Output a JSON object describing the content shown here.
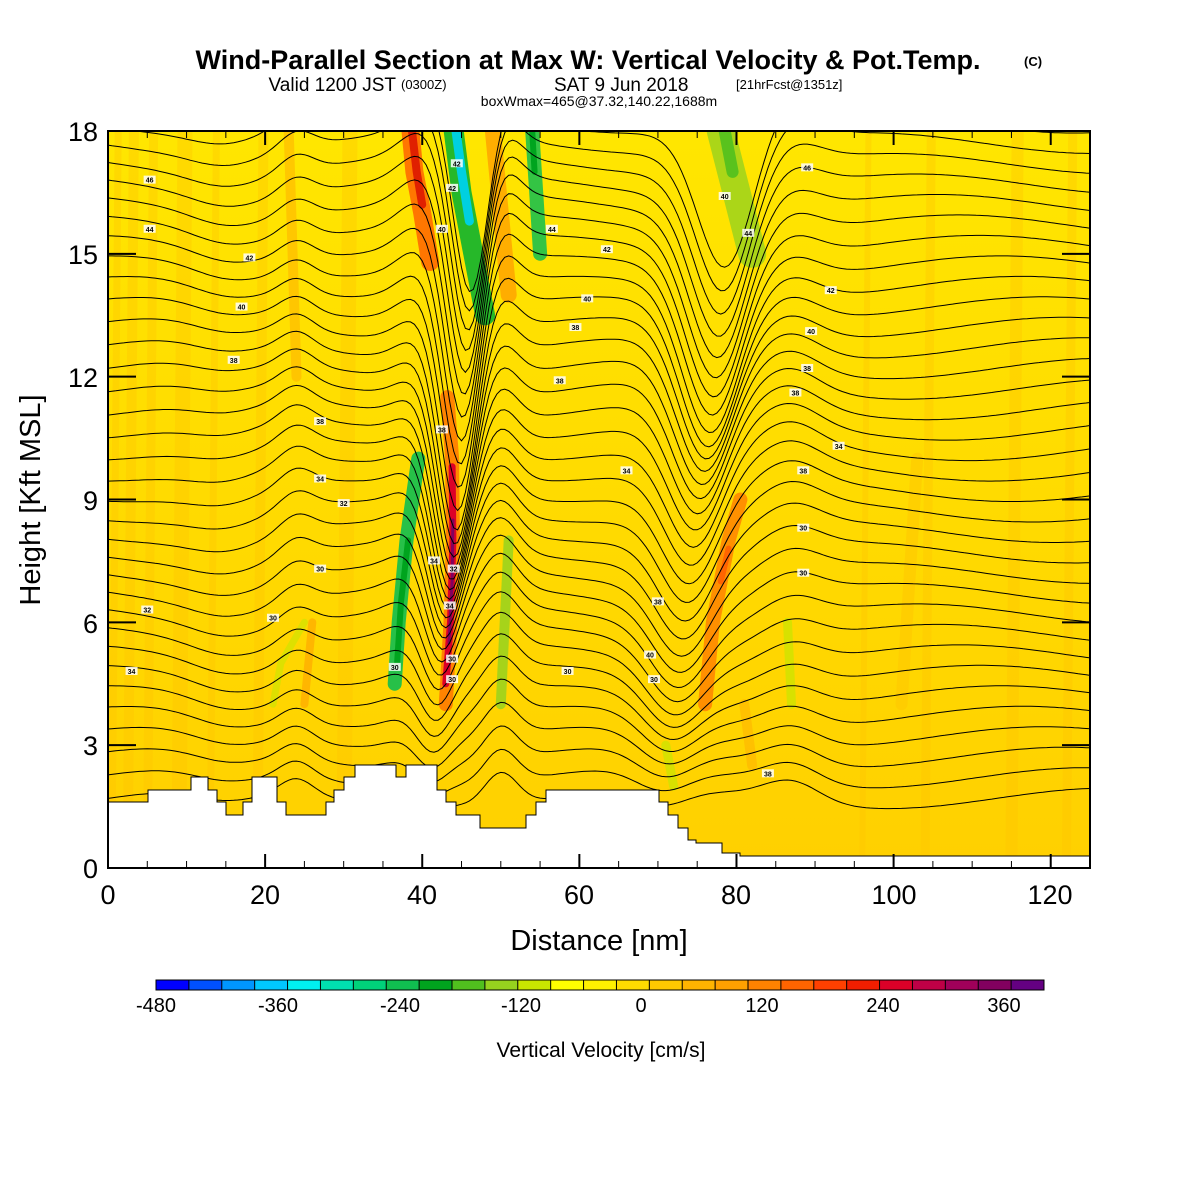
{
  "title": {
    "main": "Wind-Parallel Section at Max W: Vertical Velocity & Pot.Temp.",
    "main_sup": "(C)",
    "valid_prefix": "Valid 1200 JST",
    "valid_utc": "(0300Z)",
    "valid_date": "SAT 9 Jun 2018",
    "valid_fcst": "[21hrFcst@1351z]",
    "box_info": "boxWmax=465@37.32,140.22,1688m"
  },
  "chart_data": {
    "type": "heatmap",
    "xlabel": "Distance [nm]",
    "ylabel": "Height [Kft MSL]",
    "xlim": [
      0,
      125
    ],
    "ylim": [
      0,
      18
    ],
    "x_ticks": [
      "0",
      "20",
      "40",
      "60",
      "80",
      "100",
      "120"
    ],
    "y_ticks": [
      "0",
      "3",
      "6",
      "9",
      "12",
      "15",
      "18"
    ],
    "colorbar": {
      "label": "Vertical Velocity [cm/s]",
      "range": [
        -480,
        390
      ],
      "step": 30,
      "tick_labels": [
        "-480",
        "-360",
        "-240",
        "-120",
        "0",
        "120",
        "240",
        "360"
      ],
      "colors": [
        "#0000ff",
        "#0050ff",
        "#0096ff",
        "#00c8ff",
        "#00f0f0",
        "#00e0b0",
        "#00d27a",
        "#10be50",
        "#00a41e",
        "#50c01e",
        "#96d21e",
        "#c8e600",
        "#ffff00",
        "#fff000",
        "#ffdc00",
        "#ffc800",
        "#ffb400",
        "#ffa000",
        "#ff8200",
        "#ff6400",
        "#ff4000",
        "#f01e00",
        "#dc0028",
        "#be0046",
        "#a0005a",
        "#82005f",
        "#640082"
      ]
    },
    "theta_contour_labels": [
      "30",
      "32",
      "34",
      "36",
      "38",
      "40",
      "42",
      "44",
      "46"
    ]
  }
}
